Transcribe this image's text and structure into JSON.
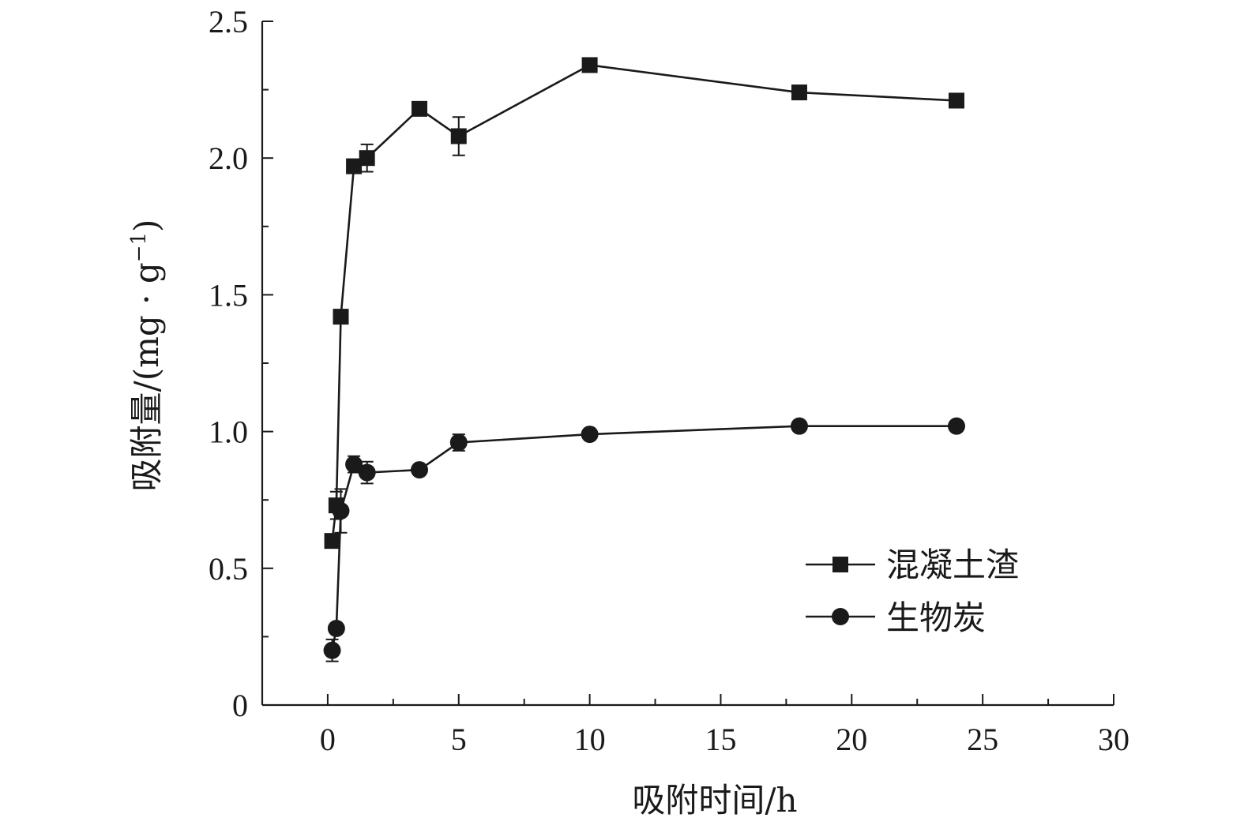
{
  "chart_data": {
    "type": "line",
    "xlabel": "吸附时间/h",
    "ylabel": "吸附量/(mg · g",
    "ylabel_sup": "−1",
    "ylabel_close": ")",
    "xlim": [
      -2.5,
      30
    ],
    "ylim": [
      0,
      2.5
    ],
    "x_ticks": [
      0,
      5,
      10,
      15,
      20,
      25,
      30
    ],
    "x_tick_labels": [
      "0",
      "5",
      "10",
      "15",
      "20",
      "25",
      "30"
    ],
    "x_minor_ticks": [
      2.5,
      7.5,
      12.5,
      17.5,
      22.5,
      27.5
    ],
    "y_ticks": [
      0,
      0.5,
      1.0,
      1.5,
      2.0,
      2.5
    ],
    "y_tick_labels": [
      "0",
      "0.5",
      "1.0",
      "1.5",
      "2.0",
      "2.5"
    ],
    "y_minor_ticks": [
      0.25,
      0.75,
      1.25,
      1.75,
      2.25
    ],
    "grid": false,
    "legend_position": "bottom-right",
    "series": [
      {
        "name": "混凝土渣",
        "marker": "square",
        "color": "#1a1a1a",
        "x": [
          0.17,
          0.33,
          0.5,
          1.0,
          1.5,
          3.5,
          5.0,
          10.0,
          18.0,
          24.0
        ],
        "y": [
          0.6,
          0.73,
          1.42,
          1.97,
          2.0,
          2.18,
          2.08,
          2.34,
          2.24,
          2.21
        ],
        "err": [
          0,
          0.05,
          0,
          0,
          0.05,
          0,
          0.07,
          0,
          0,
          0
        ]
      },
      {
        "name": "生物炭",
        "marker": "circle",
        "color": "#1a1a1a",
        "x": [
          0.17,
          0.33,
          0.5,
          1.0,
          1.5,
          3.5,
          5.0,
          10.0,
          18.0,
          24.0
        ],
        "y": [
          0.2,
          0.28,
          0.71,
          0.88,
          0.85,
          0.86,
          0.96,
          0.99,
          1.02,
          1.02
        ],
        "err": [
          0.04,
          0,
          0.08,
          0.03,
          0.04,
          0,
          0.03,
          0,
          0,
          0
        ]
      }
    ]
  }
}
